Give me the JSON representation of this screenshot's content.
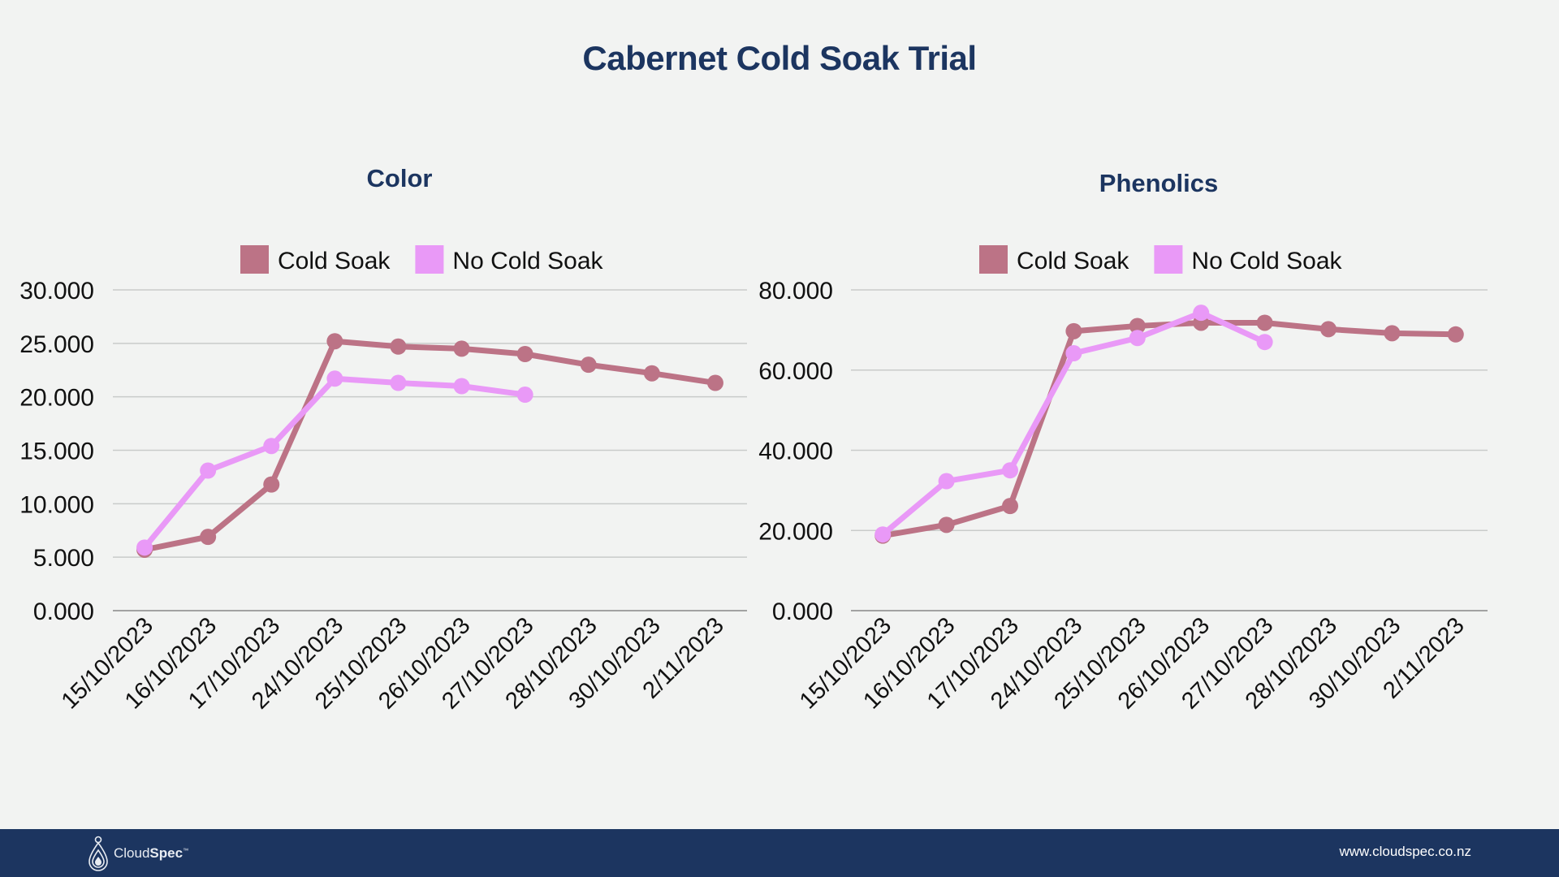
{
  "title": "Cabernet Cold Soak Trial",
  "footer": {
    "logo_light": "Cloud",
    "logo_bold": "Spec",
    "logo_tm": "™",
    "url": "www.cloudspec.co.nz"
  },
  "colors": {
    "cold_soak": "#bc7386",
    "no_cold_soak": "#e999f7",
    "title": "#1c3560"
  },
  "chart_data": [
    {
      "type": "line",
      "title": "Color",
      "categories": [
        "15/10/2023",
        "16/10/2023",
        "17/10/2023",
        "24/10/2023",
        "25/10/2023",
        "26/10/2023",
        "27/10/2023",
        "28/10/2023",
        "30/10/2023",
        "2/11/2023"
      ],
      "series": [
        {
          "name": "Cold Soak",
          "values": [
            5.7,
            6.9,
            11.8,
            25.2,
            24.7,
            24.5,
            24.0,
            23.0,
            22.2,
            21.3
          ]
        },
        {
          "name": "No Cold Soak",
          "values": [
            5.9,
            13.1,
            15.4,
            21.7,
            21.3,
            21.0,
            20.2,
            null,
            null,
            null
          ]
        }
      ],
      "yticks": [
        "0.000",
        "5.000",
        "10.000",
        "15.000",
        "20.000",
        "25.000",
        "30.000"
      ],
      "ylim": [
        0,
        30
      ],
      "legend": "top",
      "grid": true
    },
    {
      "type": "line",
      "title": "Phenolics",
      "categories": [
        "15/10/2023",
        "16/10/2023",
        "17/10/2023",
        "24/10/2023",
        "25/10/2023",
        "26/10/2023",
        "27/10/2023",
        "28/10/2023",
        "30/10/2023",
        "2/11/2023"
      ],
      "series": [
        {
          "name": "Cold Soak",
          "values": [
            18.7,
            21.4,
            26.1,
            69.7,
            71.0,
            71.8,
            71.8,
            70.2,
            69.2,
            68.9
          ]
        },
        {
          "name": "No Cold Soak",
          "values": [
            19.0,
            32.3,
            35.0,
            64.2,
            68.0,
            74.3,
            67.0,
            null,
            null,
            null
          ]
        }
      ],
      "yticks": [
        "0.000",
        "20.000",
        "40.000",
        "60.000",
        "80.000"
      ],
      "ylim": [
        0,
        80
      ],
      "legend": "top",
      "grid": true
    }
  ]
}
